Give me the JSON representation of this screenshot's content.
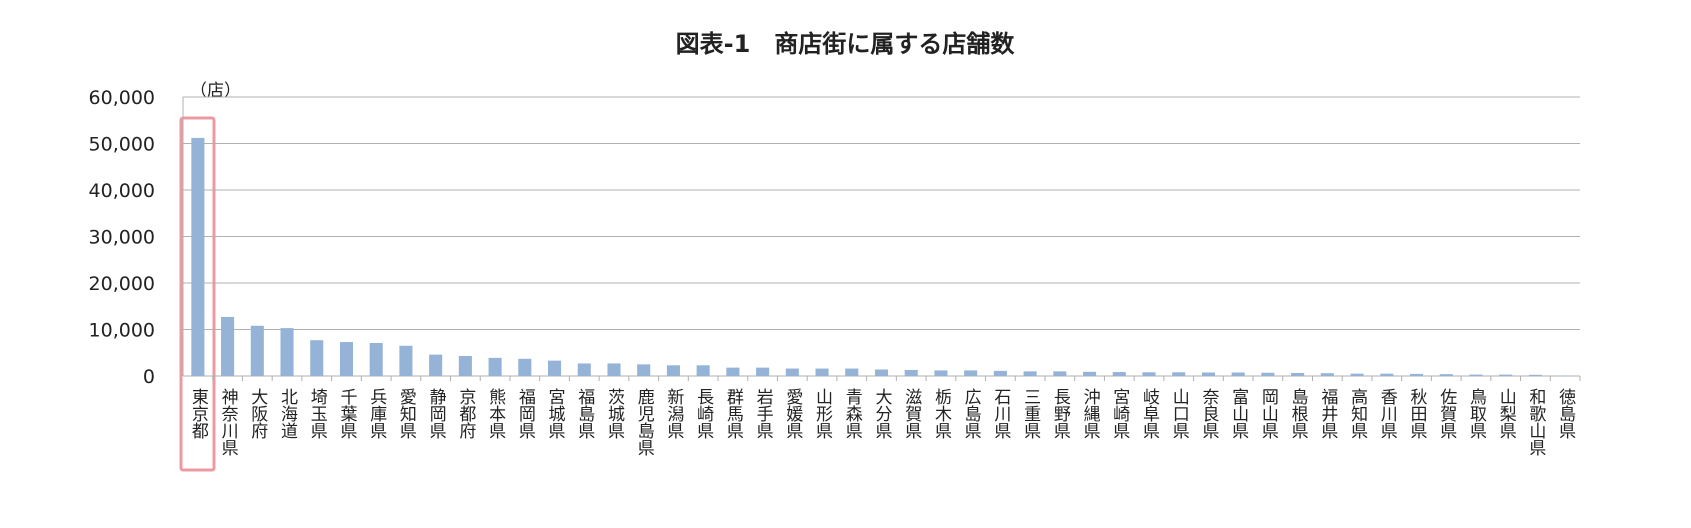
{
  "chart_data": {
    "type": "bar",
    "title": "図表-1　商店街に属する店舗数",
    "y_unit_label": "（店）",
    "categories": [
      "東京都",
      "神奈川県",
      "大阪府",
      "北海道",
      "埼玉県",
      "千葉県",
      "兵庫県",
      "愛知県",
      "静岡県",
      "京都府",
      "熊本県",
      "福岡県",
      "宮城県",
      "福島県",
      "茨城県",
      "鹿児島県",
      "新潟県",
      "長崎県",
      "群馬県",
      "岩手県",
      "愛媛県",
      "山形県",
      "青森県",
      "大分県",
      "滋賀県",
      "栃木県",
      "広島県",
      "石川県",
      "三重県",
      "長野県",
      "沖縄県",
      "宮崎県",
      "岐阜県",
      "山口県",
      "奈良県",
      "富山県",
      "岡山県",
      "島根県",
      "福井県",
      "高知県",
      "香川県",
      "秋田県",
      "佐賀県",
      "鳥取県",
      "山梨県",
      "和歌山県",
      "徳島県"
    ],
    "values": [
      51200,
      12700,
      10800,
      10300,
      7700,
      7300,
      7100,
      6500,
      4600,
      4300,
      3900,
      3700,
      3300,
      2700,
      2700,
      2500,
      2300,
      2300,
      1800,
      1800,
      1600,
      1600,
      1600,
      1400,
      1300,
      1200,
      1200,
      1100,
      1000,
      1000,
      900,
      850,
      800,
      800,
      750,
      750,
      700,
      650,
      600,
      500,
      500,
      450,
      400,
      300,
      300,
      250,
      100
    ],
    "color": "#95b3d7",
    "ylim": [
      0,
      60000
    ],
    "yticks": [
      0,
      {
        "value": 10000,
        "label": "10,000"
      },
      {
        "value": 20000,
        "label": "20,000"
      },
      {
        "value": 30000,
        "label": "30,000"
      },
      {
        "value": 40000,
        "label": "40,000"
      },
      {
        "value": 50000,
        "label": "50,000"
      },
      {
        "value": 60000,
        "label": "60,000"
      }
    ],
    "grid": true
  }
}
